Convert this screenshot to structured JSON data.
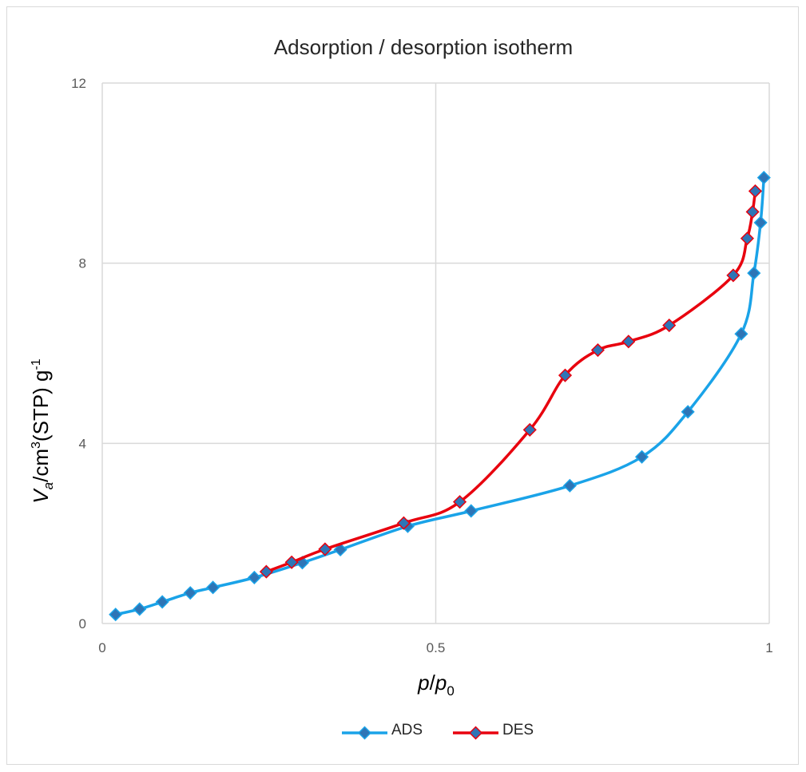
{
  "chart_data": {
    "type": "line",
    "title": "Adsorption / desorption isotherm",
    "xlabel": {
      "main": "p",
      "slash": "/",
      "sub_base": "p",
      "sub": "0"
    },
    "ylabel": {
      "var": "V",
      "var_sub": "a",
      "slash": "/cm",
      "sup1": "3",
      "mid": "(STP) g",
      "sup2": "-1"
    },
    "xlim": [
      0,
      1
    ],
    "ylim": [
      0,
      12
    ],
    "x_ticks": [
      0,
      0.5,
      1
    ],
    "x_tick_labels": [
      "0",
      "0.5",
      "1"
    ],
    "y_ticks": [
      0,
      4,
      8,
      12
    ],
    "y_tick_labels": [
      "0",
      "4",
      "8",
      "12"
    ],
    "grid": true,
    "legend_position": "bottom",
    "series": [
      {
        "name": "ADS",
        "color": "#1aa3e8",
        "marker_color": "#2e75b6",
        "points": [
          [
            0.02,
            0.2
          ],
          [
            0.056,
            0.32
          ],
          [
            0.09,
            0.48
          ],
          [
            0.132,
            0.68
          ],
          [
            0.166,
            0.8
          ],
          [
            0.228,
            1.02
          ],
          [
            0.3,
            1.35
          ],
          [
            0.357,
            1.64
          ],
          [
            0.458,
            2.16
          ],
          [
            0.553,
            2.5
          ],
          [
            0.701,
            3.06
          ],
          [
            0.809,
            3.7
          ],
          [
            0.878,
            4.7
          ],
          [
            0.958,
            6.43
          ],
          [
            0.977,
            7.78
          ],
          [
            0.987,
            8.9
          ],
          [
            0.992,
            9.9
          ]
        ]
      },
      {
        "name": "DES",
        "color": "#e8000e",
        "marker_color": "#2e75b6",
        "points": [
          [
            0.979,
            9.6
          ],
          [
            0.975,
            9.14
          ],
          [
            0.967,
            8.55
          ],
          [
            0.946,
            7.73
          ],
          [
            0.85,
            6.62
          ],
          [
            0.789,
            6.26
          ],
          [
            0.743,
            6.07
          ],
          [
            0.694,
            5.51
          ],
          [
            0.641,
            4.3
          ],
          [
            0.536,
            2.7
          ],
          [
            0.452,
            2.23
          ],
          [
            0.334,
            1.65
          ],
          [
            0.284,
            1.36
          ],
          [
            0.246,
            1.15
          ]
        ]
      }
    ]
  }
}
